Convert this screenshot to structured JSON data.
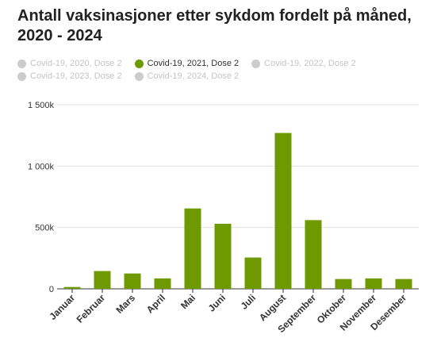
{
  "title": "Antall vaksinasjoner etter sykdom fordelt på måned, 2020 - 2024",
  "legend": [
    [
      {
        "label": "Covid-19, 2020, Dose 2",
        "active": false
      },
      {
        "label": "Covid-19, 2021, Dose 2",
        "active": true
      },
      {
        "label": "Covid-19, 2022, Dose 2",
        "active": false
      }
    ],
    [
      {
        "label": "Covid-19, 2023, Dose 2",
        "active": false
      },
      {
        "label": "Covid-19, 2024, Dose 2",
        "active": false
      }
    ]
  ],
  "colors": {
    "active": "#6e9a00",
    "inactive": "#cccccc",
    "grid": "#e0e0e0",
    "axis": "#333333"
  },
  "chart_data": {
    "type": "bar",
    "title": "Antall vaksinasjoner etter sykdom fordelt på måned, 2020 - 2024",
    "xlabel": "",
    "ylabel": "",
    "ylim": [
      0,
      1500000
    ],
    "yticks": [
      0,
      500000,
      1000000,
      1500000
    ],
    "ytick_labels": [
      "0",
      "500k",
      "1 000k",
      "1 500k"
    ],
    "grid": true,
    "legend_position": "top-left",
    "categories": [
      "Januar",
      "Februar",
      "Mars",
      "April",
      "Mai",
      "Juni",
      "Juli",
      "August",
      "September",
      "Oktober",
      "November",
      "Desember"
    ],
    "series": [
      {
        "name": "Covid-19, 2021, Dose 2",
        "values": [
          15000,
          145000,
          125000,
          85000,
          655000,
          530000,
          255000,
          1270000,
          560000,
          80000,
          85000,
          80000
        ]
      }
    ]
  }
}
